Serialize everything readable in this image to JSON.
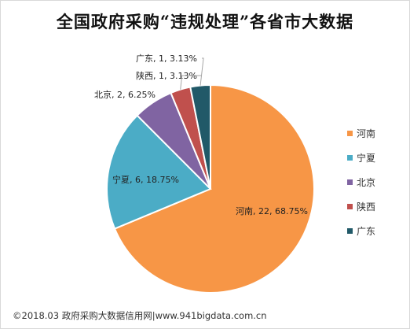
{
  "chart_data": {
    "type": "pie",
    "title": "全国政府采购“违规处理”各省市大数据",
    "slices": [
      {
        "name": "河南",
        "value": 22,
        "percent": "68.75%",
        "color": "#F79646"
      },
      {
        "name": "宁夏",
        "value": 6,
        "percent": "18.75%",
        "color": "#4BACC6"
      },
      {
        "name": "北京",
        "value": 2,
        "percent": "6.25%",
        "color": "#8064A2"
      },
      {
        "name": "陕西",
        "value": 1,
        "percent": "3.13%",
        "color": "#C0504D"
      },
      {
        "name": "广东",
        "value": 1,
        "percent": "3.13%",
        "color": "#215968"
      }
    ],
    "legend": [
      "河南",
      "宁夏",
      "北京",
      "陕西",
      "广东"
    ],
    "legend_position": "right"
  },
  "footer": "©2018.03 政府采购大数据信用网|www.941bigdata.com.cn"
}
